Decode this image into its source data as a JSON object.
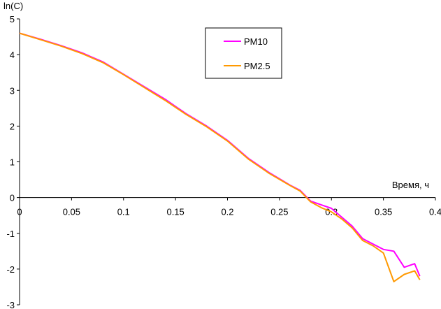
{
  "chart_data": {
    "type": "line",
    "title": "",
    "xlabel": "Время, ч",
    "ylabel": "ln(C)",
    "xlim": [
      0,
      0.4
    ],
    "ylim": [
      -3,
      5
    ],
    "x_ticks": [
      0,
      0.05,
      0.1,
      0.15,
      0.2,
      0.25,
      0.3,
      0.35,
      0.4
    ],
    "x_tick_labels": [
      "0",
      "0.05",
      "0.1",
      "0.15",
      "0.2",
      "0.25",
      "0.3",
      "0.35",
      "0.4"
    ],
    "y_ticks": [
      -3,
      -2,
      -1,
      0,
      1,
      2,
      3,
      4,
      5
    ],
    "y_tick_labels": [
      "-3",
      "-2",
      "-1",
      "0",
      "1",
      "2",
      "3",
      "4",
      "5"
    ],
    "grid": false,
    "legend": "top-center",
    "series": [
      {
        "name": "PM10",
        "color": "#ff00ff",
        "x": [
          0,
          0.02,
          0.04,
          0.06,
          0.08,
          0.1,
          0.12,
          0.14,
          0.16,
          0.18,
          0.2,
          0.22,
          0.24,
          0.26,
          0.27,
          0.28,
          0.29,
          0.3,
          0.31,
          0.32,
          0.33,
          0.34,
          0.35,
          0.36,
          0.37,
          0.38,
          0.385
        ],
        "y": [
          4.6,
          4.43,
          4.25,
          4.05,
          3.8,
          3.45,
          3.1,
          2.75,
          2.35,
          2.0,
          1.6,
          1.1,
          0.7,
          0.35,
          0.2,
          -0.1,
          -0.2,
          -0.3,
          -0.55,
          -0.8,
          -1.15,
          -1.3,
          -1.45,
          -1.5,
          -1.95,
          -1.85,
          -2.2
        ]
      },
      {
        "name": "PM2.5",
        "color": "#ff9900",
        "x": [
          0,
          0.02,
          0.04,
          0.06,
          0.08,
          0.1,
          0.12,
          0.14,
          0.16,
          0.18,
          0.2,
          0.22,
          0.24,
          0.26,
          0.27,
          0.28,
          0.29,
          0.3,
          0.31,
          0.32,
          0.33,
          0.34,
          0.35,
          0.36,
          0.37,
          0.38,
          0.385
        ],
        "y": [
          4.6,
          4.42,
          4.24,
          4.03,
          3.78,
          3.44,
          3.08,
          2.72,
          2.33,
          1.98,
          1.58,
          1.08,
          0.68,
          0.34,
          0.18,
          -0.12,
          -0.28,
          -0.4,
          -0.6,
          -0.85,
          -1.2,
          -1.35,
          -1.55,
          -2.35,
          -2.15,
          -2.05,
          -2.3
        ]
      }
    ]
  }
}
